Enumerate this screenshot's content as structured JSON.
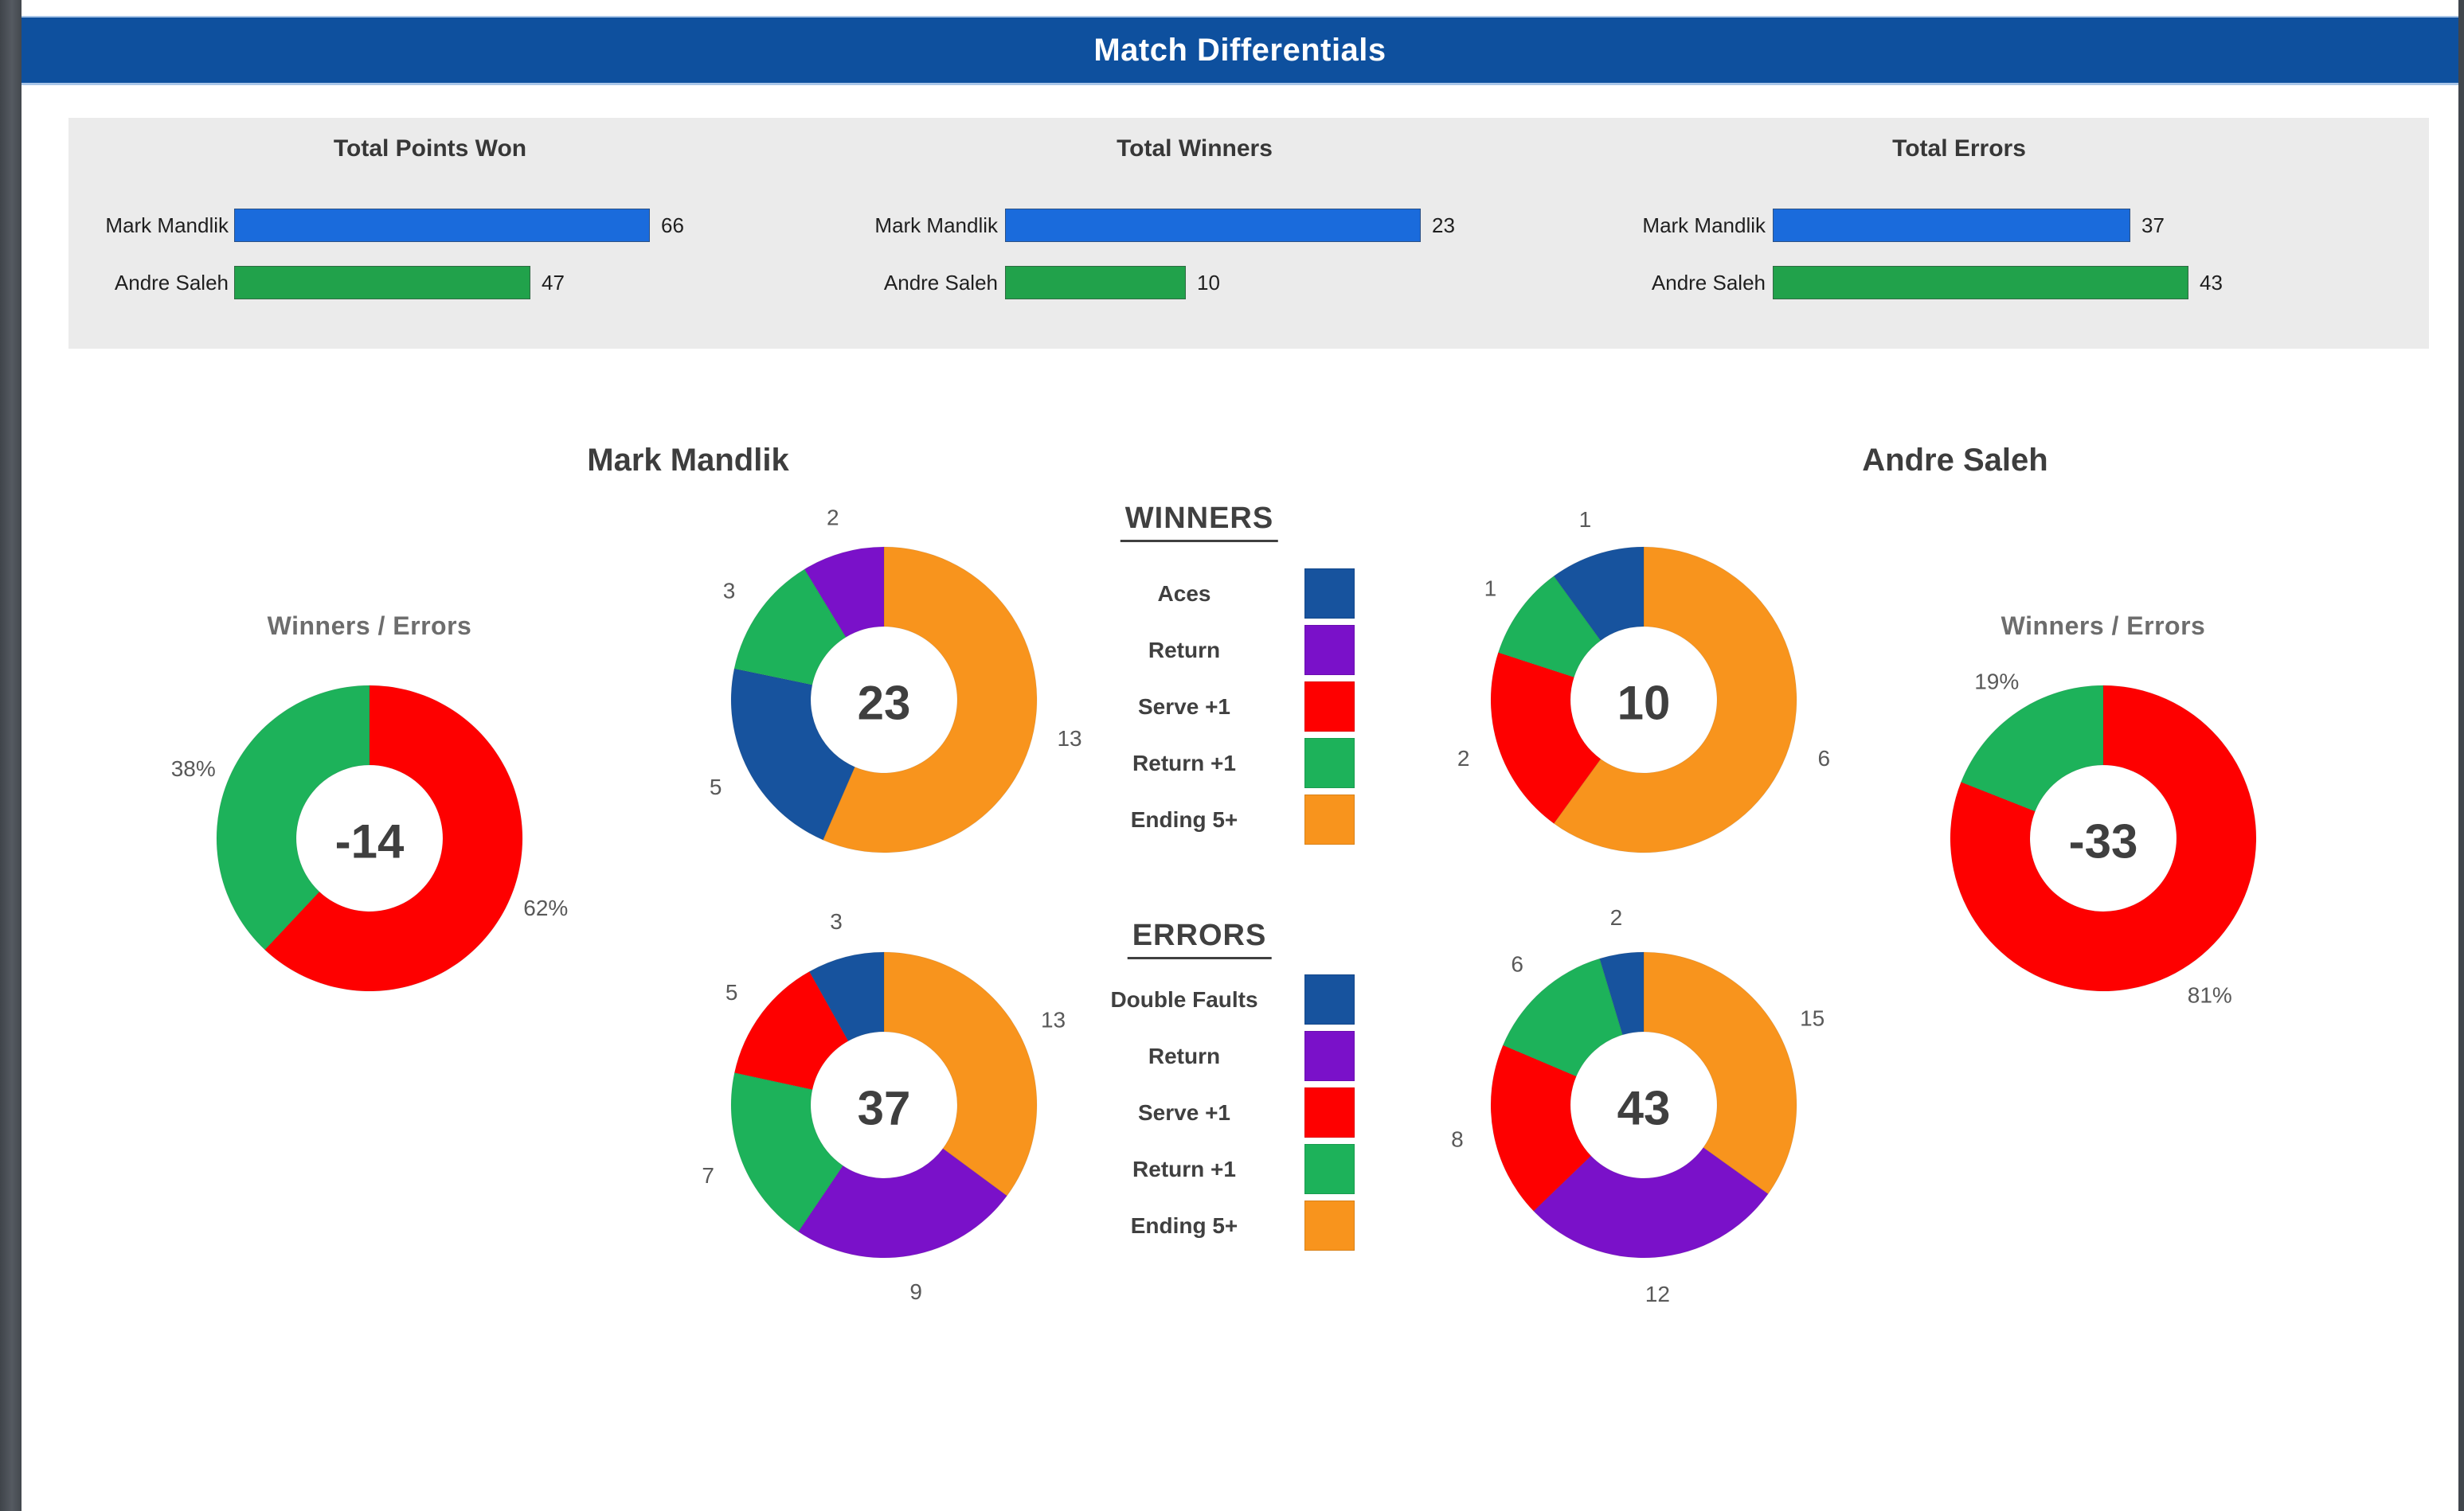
{
  "header": {
    "title": "Match Differentials"
  },
  "sections": {
    "left_player": "Mark Mandlik",
    "right_player": "Andre Saleh",
    "ratio_title": "Winners / Errors"
  },
  "colors": {
    "header_bg": "#0e509e",
    "panel_bg": "#ebebeb",
    "bar_blue": "#1a6bdc",
    "bar_green": "#21a24b",
    "aces_blue": "#17539e",
    "return_purple": "#7a11c9",
    "serve_red": "#fe0000",
    "return_plus_green": "#1db25a",
    "ending_orange": "#f8941d"
  },
  "legends": [
    {
      "id": "winners_legend",
      "title": "WINNERS",
      "items": [
        {
          "label": "Aces",
          "color": "#17539e"
        },
        {
          "label": "Return",
          "color": "#7a11c9"
        },
        {
          "label": "Serve +1",
          "color": "#fe0000"
        },
        {
          "label": "Return +1",
          "color": "#1db25a"
        },
        {
          "label": "Ending 5+",
          "color": "#f8941d"
        }
      ]
    },
    {
      "id": "errors_legend",
      "title": "ERRORS",
      "items": [
        {
          "label": "Double Faults",
          "color": "#17539e"
        },
        {
          "label": "Return",
          "color": "#7a11c9"
        },
        {
          "label": "Serve +1",
          "color": "#fe0000"
        },
        {
          "label": "Return +1",
          "color": "#1db25a"
        },
        {
          "label": "Ending 5+",
          "color": "#f8941d"
        }
      ]
    }
  ],
  "chart_data": [
    {
      "id": "total_points_won",
      "type": "bar",
      "orientation": "horizontal",
      "title": "Total Points Won",
      "categories": [
        "Mark Mandlik",
        "Andre Saleh"
      ],
      "values": [
        66,
        47
      ],
      "bar_colors": [
        "#1a6bdc",
        "#21a24b"
      ],
      "data_labels": [
        "66",
        "47"
      ]
    },
    {
      "id": "total_winners",
      "type": "bar",
      "orientation": "horizontal",
      "title": "Total Winners",
      "categories": [
        "Mark Mandlik",
        "Andre Saleh"
      ],
      "values": [
        23,
        10
      ],
      "bar_colors": [
        "#1a6bdc",
        "#21a24b"
      ],
      "data_labels": [
        "23",
        "10"
      ]
    },
    {
      "id": "total_errors",
      "type": "bar",
      "orientation": "horizontal",
      "title": "Total Errors",
      "categories": [
        "Mark Mandlik",
        "Andre Saleh"
      ],
      "values": [
        37,
        43
      ],
      "bar_colors": [
        "#1a6bdc",
        "#21a24b"
      ],
      "data_labels": [
        "37",
        "43"
      ]
    },
    {
      "id": "mark_winners_errors",
      "type": "donut",
      "player": "Mark Mandlik",
      "title": "Winners / Errors",
      "center_label": "-14",
      "slices": [
        {
          "name": "Errors",
          "label": "62%",
          "value": 62,
          "color": "#fe0000"
        },
        {
          "name": "Winners",
          "label": "38%",
          "value": 38,
          "color": "#1db25a"
        }
      ]
    },
    {
      "id": "mark_winners",
      "type": "donut",
      "player": "Mark Mandlik",
      "series": "WINNERS",
      "center_label": "23",
      "slices": [
        {
          "name": "Ending 5+",
          "label": "13",
          "value": 13,
          "color": "#f8941d"
        },
        {
          "name": "Aces",
          "label": "5",
          "value": 5,
          "color": "#17539e"
        },
        {
          "name": "Return +1",
          "label": "3",
          "value": 3,
          "color": "#1db25a"
        },
        {
          "name": "Return",
          "label": "2",
          "value": 2,
          "color": "#7a11c9"
        }
      ]
    },
    {
      "id": "mark_errors",
      "type": "donut",
      "player": "Mark Mandlik",
      "series": "ERRORS",
      "center_label": "37",
      "slices": [
        {
          "name": "Ending 5+",
          "label": "13",
          "value": 13,
          "color": "#f8941d"
        },
        {
          "name": "Return",
          "label": "9",
          "value": 9,
          "color": "#7a11c9"
        },
        {
          "name": "Return +1",
          "label": "7",
          "value": 7,
          "color": "#1db25a"
        },
        {
          "name": "Serve +1",
          "label": "5",
          "value": 5,
          "color": "#fe0000"
        },
        {
          "name": "Double Faults",
          "label": "3",
          "value": 3,
          "color": "#17539e"
        }
      ]
    },
    {
      "id": "andre_winners",
      "type": "donut",
      "player": "Andre Saleh",
      "series": "WINNERS",
      "center_label": "10",
      "slices": [
        {
          "name": "Ending 5+",
          "label": "6",
          "value": 6,
          "color": "#f8941d"
        },
        {
          "name": "Serve +1",
          "label": "2",
          "value": 2,
          "color": "#fe0000"
        },
        {
          "name": "Return +1",
          "label": "1",
          "value": 1,
          "color": "#1db25a"
        },
        {
          "name": "Aces",
          "label": "1",
          "value": 1,
          "color": "#17539e"
        }
      ]
    },
    {
      "id": "andre_errors",
      "type": "donut",
      "player": "Andre Saleh",
      "series": "ERRORS",
      "center_label": "43",
      "slices": [
        {
          "name": "Ending 5+",
          "label": "15",
          "value": 15,
          "color": "#f8941d"
        },
        {
          "name": "Return",
          "label": "12",
          "value": 12,
          "color": "#7a11c9"
        },
        {
          "name": "Serve +1",
          "label": "8",
          "value": 8,
          "color": "#fe0000"
        },
        {
          "name": "Return +1",
          "label": "6",
          "value": 6,
          "color": "#1db25a"
        },
        {
          "name": "Double Faults",
          "label": "2",
          "value": 2,
          "color": "#17539e"
        }
      ]
    },
    {
      "id": "andre_winners_errors",
      "type": "donut",
      "player": "Andre Saleh",
      "title": "Winners / Errors",
      "center_label": "-33",
      "slices": [
        {
          "name": "Errors",
          "label": "81%",
          "value": 81,
          "color": "#fe0000"
        },
        {
          "name": "Winners",
          "label": "19%",
          "value": 19,
          "color": "#1db25a"
        }
      ]
    }
  ]
}
